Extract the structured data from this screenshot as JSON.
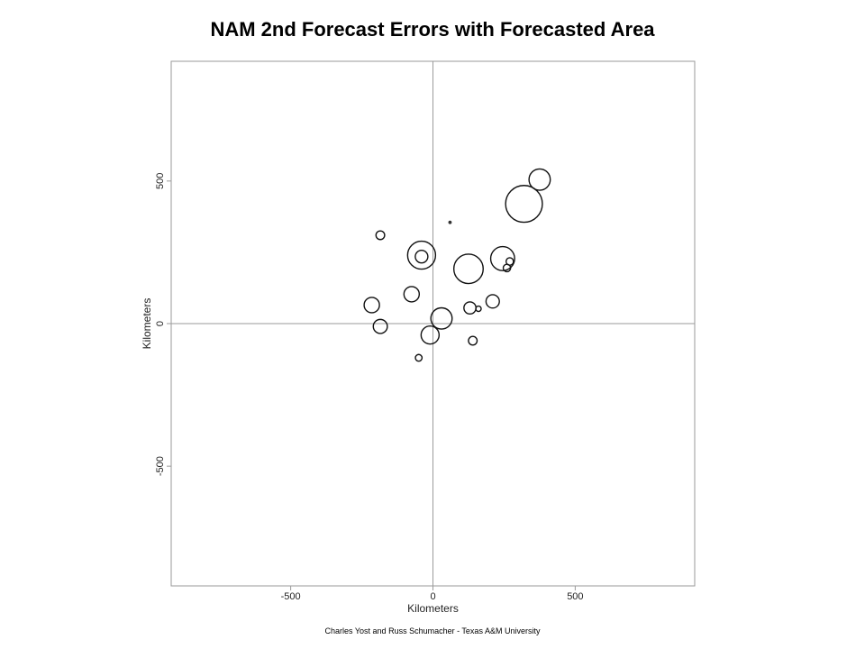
{
  "chart_data": {
    "type": "scatter",
    "title": "NAM 2nd Forecast Errors with Forecasted Area",
    "xlabel": "Kilometers",
    "ylabel": "Kilometers",
    "xlim": [
      -920,
      920
    ],
    "ylim": [
      -920,
      920
    ],
    "xticks": [
      -500,
      0,
      500
    ],
    "yticks": [
      -500,
      0,
      500
    ],
    "xtick_labels": [
      "-500",
      "0",
      "500"
    ],
    "ytick_labels": [
      "-500",
      "0",
      "500"
    ],
    "reference_lines": {
      "x": 0,
      "y": 0
    },
    "grid": false,
    "legend": "none",
    "marker": "open-circle",
    "marker_size_encodes": "forecasted area (relative)",
    "points": [
      {
        "x": 375,
        "y": 505,
        "size": 3.2
      },
      {
        "x": 320,
        "y": 420,
        "size": 5.5
      },
      {
        "x": 60,
        "y": 355,
        "size": 0.5
      },
      {
        "x": -185,
        "y": 310,
        "size": 1.3
      },
      {
        "x": -40,
        "y": 240,
        "size": 4.2
      },
      {
        "x": -40,
        "y": 235,
        "size": 1.9
      },
      {
        "x": 245,
        "y": 228,
        "size": 3.6
      },
      {
        "x": 270,
        "y": 218,
        "size": 1.1
      },
      {
        "x": 260,
        "y": 195,
        "size": 1.1
      },
      {
        "x": 125,
        "y": 192,
        "size": 4.4
      },
      {
        "x": -75,
        "y": 103,
        "size": 2.3
      },
      {
        "x": 210,
        "y": 78,
        "size": 2.0
      },
      {
        "x": -215,
        "y": 65,
        "size": 2.3
      },
      {
        "x": 130,
        "y": 55,
        "size": 1.8
      },
      {
        "x": 160,
        "y": 52,
        "size": 0.8
      },
      {
        "x": 30,
        "y": 18,
        "size": 3.2
      },
      {
        "x": -185,
        "y": -10,
        "size": 2.1
      },
      {
        "x": -10,
        "y": -40,
        "size": 2.7
      },
      {
        "x": 140,
        "y": -60,
        "size": 1.3
      },
      {
        "x": -50,
        "y": -120,
        "size": 1.0
      }
    ]
  },
  "footer": {
    "credit": "Charles Yost and Russ Schumacher - Texas A&M University"
  }
}
